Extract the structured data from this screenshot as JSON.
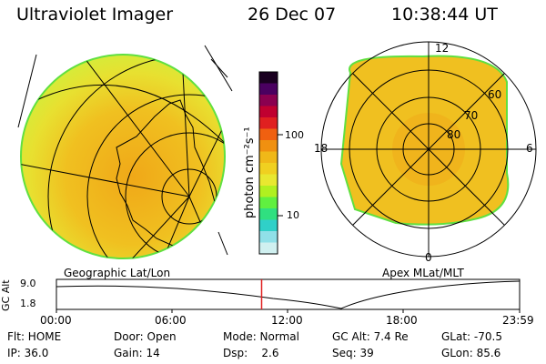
{
  "header": {
    "instrument": "Ultraviolet Imager",
    "date": "26 Dec 07",
    "time": "10:38:44 UT"
  },
  "colorbar": {
    "unit_label": "photon cm⁻²s⁻¹",
    "tick_labels": [
      "100",
      "10"
    ],
    "colors": [
      "#1a0020",
      "#4a0060",
      "#8a0050",
      "#c00030",
      "#e02020",
      "#f06010",
      "#f09010",
      "#f0b818",
      "#f0d020",
      "#e8e830",
      "#b0f020",
      "#60f040",
      "#30e080",
      "#30d0c8",
      "#90e0e8",
      "#d0f0f0"
    ]
  },
  "left_map": {
    "caption": "Geographic Lat/Lon"
  },
  "right_map": {
    "caption": "Apex MLat/MLT",
    "mlt_labels": {
      "top": "12",
      "left": "18",
      "right": "6",
      "bottom": "0"
    },
    "lat_labels": [
      "60",
      "70",
      "80"
    ]
  },
  "altitude_plot": {
    "y_label": "GC Alt",
    "y_ticks": [
      "9.0",
      "1.8"
    ],
    "x_ticks": [
      "00:00",
      "06:00",
      "12:00",
      "18:00",
      "23:59"
    ],
    "current_time_fraction": 0.443,
    "marker_color": "#e02020"
  },
  "info": {
    "row1": [
      "Flt: HOME",
      "Door: Open",
      "Mode: Normal",
      "GC Alt: 7.4 Re",
      "GLat: -70.5"
    ],
    "row2": [
      "IP: 36.0",
      "Gain: 14",
      "Dsp:    2.6",
      "Seq: 39",
      "GLon: 85.6"
    ]
  }
}
